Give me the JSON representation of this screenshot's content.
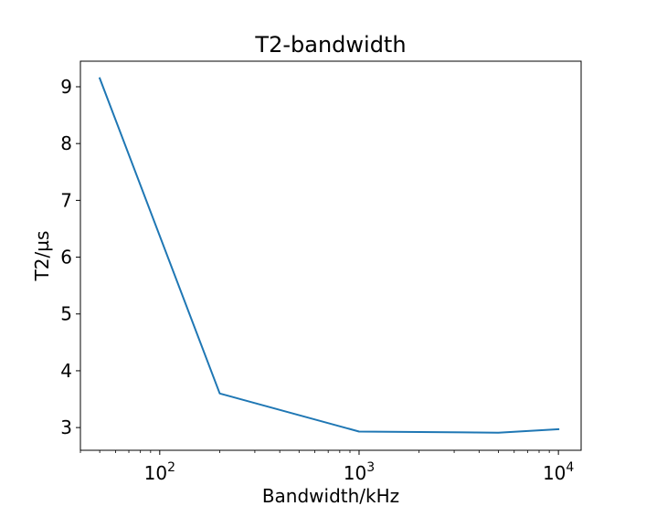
{
  "chart_data": {
    "type": "line",
    "title": "T2-bandwidth",
    "xlabel": "Bandwidth/kHz",
    "ylabel": "T2/µs",
    "xscale": "log",
    "xlim": [
      40,
      13000
    ],
    "ylim": [
      2.6,
      9.45
    ],
    "grid": false,
    "x_ticks": [
      {
        "value": 100,
        "base": "10",
        "exp": "2"
      },
      {
        "value": 1000,
        "base": "10",
        "exp": "3"
      },
      {
        "value": 10000,
        "base": "10",
        "exp": "4"
      }
    ],
    "y_ticks": [
      3,
      4,
      5,
      6,
      7,
      8,
      9
    ],
    "series": [
      {
        "color": "#1f77b4",
        "x": [
          50,
          200,
          1000,
          5000,
          10000
        ],
        "y": [
          9.15,
          3.6,
          2.93,
          2.91,
          2.97
        ]
      }
    ]
  }
}
